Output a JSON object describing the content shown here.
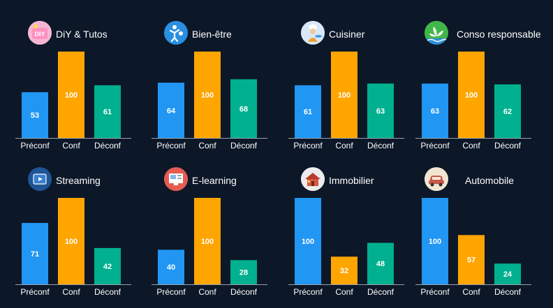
{
  "colors": {
    "background": "#0c1728",
    "preconf": "#2196f3",
    "conf": "#ffa500",
    "deconf": "#00b08f",
    "axis": "#9aa3ad",
    "text": "#ffffff"
  },
  "chart_data": [
    {
      "type": "bar",
      "title": "DiY & Tutos",
      "icon": "diy-icon",
      "categories": [
        "Préconf",
        "Conf",
        "Déconf"
      ],
      "values": [
        53,
        100,
        61
      ]
    },
    {
      "type": "bar",
      "title": "Bien-être",
      "icon": "wellness-icon",
      "categories": [
        "Préconf",
        "Conf",
        "Déconf"
      ],
      "values": [
        64,
        100,
        68
      ]
    },
    {
      "type": "bar",
      "title": "Cuisiner",
      "icon": "cooking-icon",
      "categories": [
        "Préconf",
        "Conf",
        "Déconf"
      ],
      "values": [
        61,
        100,
        63
      ]
    },
    {
      "type": "bar",
      "title": "Conso responsable",
      "icon": "leaf-icon",
      "categories": [
        "Préconf",
        "Conf",
        "Déconf"
      ],
      "values": [
        63,
        100,
        62
      ]
    },
    {
      "type": "bar",
      "title": "Streaming",
      "icon": "video-player-icon",
      "categories": [
        "Préconf",
        "Conf",
        "Déconf"
      ],
      "values": [
        71,
        100,
        42
      ]
    },
    {
      "type": "bar",
      "title": "E-learning",
      "icon": "e-learning-screen-icon",
      "categories": [
        "Préconf",
        "Conf",
        "Déconf"
      ],
      "values": [
        40,
        100,
        28
      ]
    },
    {
      "type": "bar",
      "title": "Immobilier",
      "icon": "house-icon",
      "categories": [
        "Préconf",
        "Conf",
        "Déconf"
      ],
      "values": [
        100,
        32,
        48
      ]
    },
    {
      "type": "bar",
      "title": "Automobile",
      "icon": "car-icon",
      "categories": [
        "Préconf",
        "Conf",
        "Déconf"
      ],
      "values": [
        100,
        57,
        24
      ]
    }
  ]
}
